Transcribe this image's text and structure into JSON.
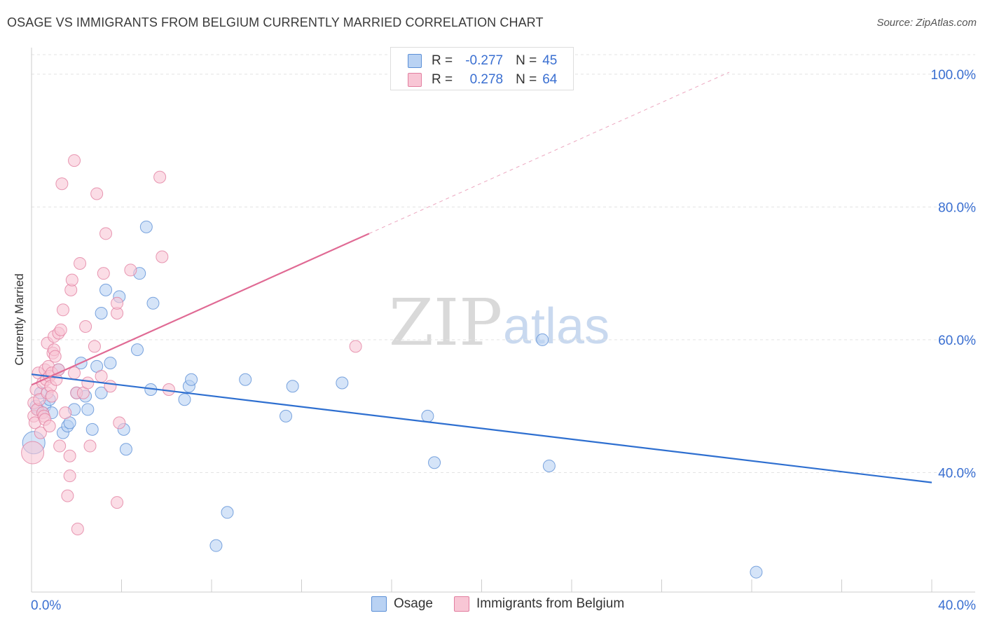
{
  "header": {
    "title": "OSAGE VS IMMIGRANTS FROM BELGIUM CURRENTLY MARRIED CORRELATION CHART",
    "source": "Source: ZipAtlas.com"
  },
  "watermark": {
    "zip": "ZIP",
    "atlas": "atlas"
  },
  "legend_top": {
    "rows": [
      {
        "r_label": "R =",
        "r_value": "-0.277",
        "n_label": "N =",
        "n_value": "45"
      },
      {
        "r_label": "R =",
        "r_value": "0.278",
        "n_label": "N =",
        "n_value": "64"
      }
    ]
  },
  "legend_bottom": {
    "items": [
      "Osage",
      "Immigrants from Belgium"
    ]
  },
  "colors": {
    "osage_fill": "#b9d2f3",
    "osage_stroke": "#5b8fd6",
    "osage_line": "#2e6fd0",
    "belgium_fill": "#f8c6d5",
    "belgium_stroke": "#e27fa0",
    "belgium_line": "#e06a94",
    "tick_label": "#3a6fd1",
    "grid": "#e3e3e3"
  },
  "chart_data": {
    "type": "scatter",
    "title": "OSAGE VS IMMIGRANTS FROM BELGIUM CURRENTLY MARRIED CORRELATION CHART",
    "xlabel": "",
    "ylabel": "Currently Married",
    "xlim": [
      0,
      40
    ],
    "ylim": [
      22,
      104
    ],
    "x_tick_labels": [
      "0.0%",
      "40.0%"
    ],
    "y_ticks": [
      40,
      60,
      80,
      100
    ],
    "y_tick_labels": [
      "40.0%",
      "60.0%",
      "80.0%",
      "100.0%"
    ],
    "grid": true,
    "legend_position": "bottom",
    "series": [
      {
        "name": "Osage",
        "R": -0.277,
        "N": 45,
        "trend": {
          "x0": 0.0,
          "y0": 54.8,
          "x1": 40.0,
          "y1": 38.5
        },
        "points": [
          [
            0.1,
            44.5
          ],
          [
            0.3,
            49.5
          ],
          [
            0.5,
            49.0
          ],
          [
            0.6,
            50.0
          ],
          [
            0.8,
            51.0
          ],
          [
            0.9,
            49.0
          ],
          [
            1.2,
            55.5
          ],
          [
            1.4,
            46.0
          ],
          [
            1.6,
            47.0
          ],
          [
            1.7,
            47.5
          ],
          [
            1.9,
            49.5
          ],
          [
            2.0,
            52.0
          ],
          [
            2.2,
            56.5
          ],
          [
            2.4,
            51.5
          ],
          [
            2.5,
            49.5
          ],
          [
            2.7,
            46.5
          ],
          [
            2.9,
            56.0
          ],
          [
            3.1,
            64.0
          ],
          [
            3.1,
            52.0
          ],
          [
            3.3,
            67.5
          ],
          [
            3.5,
            56.5
          ],
          [
            3.9,
            66.5
          ],
          [
            4.1,
            46.5
          ],
          [
            4.2,
            43.5
          ],
          [
            4.7,
            58.5
          ],
          [
            4.8,
            70.0
          ],
          [
            5.1,
            77.0
          ],
          [
            5.3,
            52.5
          ],
          [
            5.4,
            65.5
          ],
          [
            6.8,
            51.0
          ],
          [
            7.0,
            53.0
          ],
          [
            7.1,
            54.0
          ],
          [
            8.2,
            29.0
          ],
          [
            8.7,
            34.0
          ],
          [
            9.5,
            54.0
          ],
          [
            11.3,
            48.5
          ],
          [
            11.6,
            53.0
          ],
          [
            13.8,
            53.5
          ],
          [
            17.6,
            48.5
          ],
          [
            17.9,
            41.5
          ],
          [
            22.7,
            60.0
          ],
          [
            23.0,
            41.0
          ],
          [
            32.2,
            25.0
          ],
          [
            0.2,
            50.0
          ],
          [
            0.4,
            52.0
          ]
        ]
      },
      {
        "name": "Immigrants from Belgium",
        "R": 0.278,
        "N": 64,
        "trend": {
          "x0": 0.0,
          "y0": 53.2,
          "x1": 15.0,
          "y1": 76.0,
          "dash_x1": 31.0,
          "dash_y1": 100.3
        },
        "points": [
          [
            0.05,
            43.0
          ],
          [
            0.1,
            48.5
          ],
          [
            0.1,
            50.5
          ],
          [
            0.15,
            47.5
          ],
          [
            0.2,
            52.5
          ],
          [
            0.25,
            49.5
          ],
          [
            0.3,
            55.0
          ],
          [
            0.35,
            51.0
          ],
          [
            0.4,
            46.0
          ],
          [
            0.5,
            53.5
          ],
          [
            0.5,
            49.0
          ],
          [
            0.55,
            48.5
          ],
          [
            0.6,
            55.5
          ],
          [
            0.6,
            48.0
          ],
          [
            0.65,
            54.0
          ],
          [
            0.7,
            59.5
          ],
          [
            0.7,
            52.0
          ],
          [
            0.75,
            56.0
          ],
          [
            0.8,
            47.0
          ],
          [
            0.8,
            54.5
          ],
          [
            0.85,
            53.0
          ],
          [
            0.9,
            51.5
          ],
          [
            0.9,
            55.0
          ],
          [
            0.95,
            58.0
          ],
          [
            1.0,
            58.5
          ],
          [
            1.0,
            60.5
          ],
          [
            1.05,
            57.5
          ],
          [
            1.1,
            54.0
          ],
          [
            1.2,
            61.0
          ],
          [
            1.2,
            55.5
          ],
          [
            1.25,
            44.0
          ],
          [
            1.3,
            61.5
          ],
          [
            1.35,
            83.5
          ],
          [
            1.4,
            64.5
          ],
          [
            1.5,
            49.0
          ],
          [
            1.6,
            36.5
          ],
          [
            1.7,
            39.5
          ],
          [
            1.7,
            42.5
          ],
          [
            1.75,
            67.5
          ],
          [
            1.8,
            69.0
          ],
          [
            1.9,
            87.0
          ],
          [
            1.9,
            55.0
          ],
          [
            2.0,
            52.0
          ],
          [
            2.05,
            31.5
          ],
          [
            2.15,
            71.5
          ],
          [
            2.3,
            52.0
          ],
          [
            2.4,
            62.0
          ],
          [
            2.5,
            53.5
          ],
          [
            2.6,
            44.0
          ],
          [
            2.8,
            59.0
          ],
          [
            2.9,
            82.0
          ],
          [
            3.1,
            54.5
          ],
          [
            3.2,
            70.0
          ],
          [
            3.3,
            76.0
          ],
          [
            3.5,
            53.0
          ],
          [
            3.8,
            35.5
          ],
          [
            3.8,
            64.0
          ],
          [
            3.8,
            65.5
          ],
          [
            3.9,
            47.5
          ],
          [
            4.4,
            70.5
          ],
          [
            5.7,
            84.5
          ],
          [
            5.8,
            72.5
          ],
          [
            6.1,
            52.5
          ],
          [
            14.4,
            59.0
          ]
        ]
      }
    ]
  }
}
